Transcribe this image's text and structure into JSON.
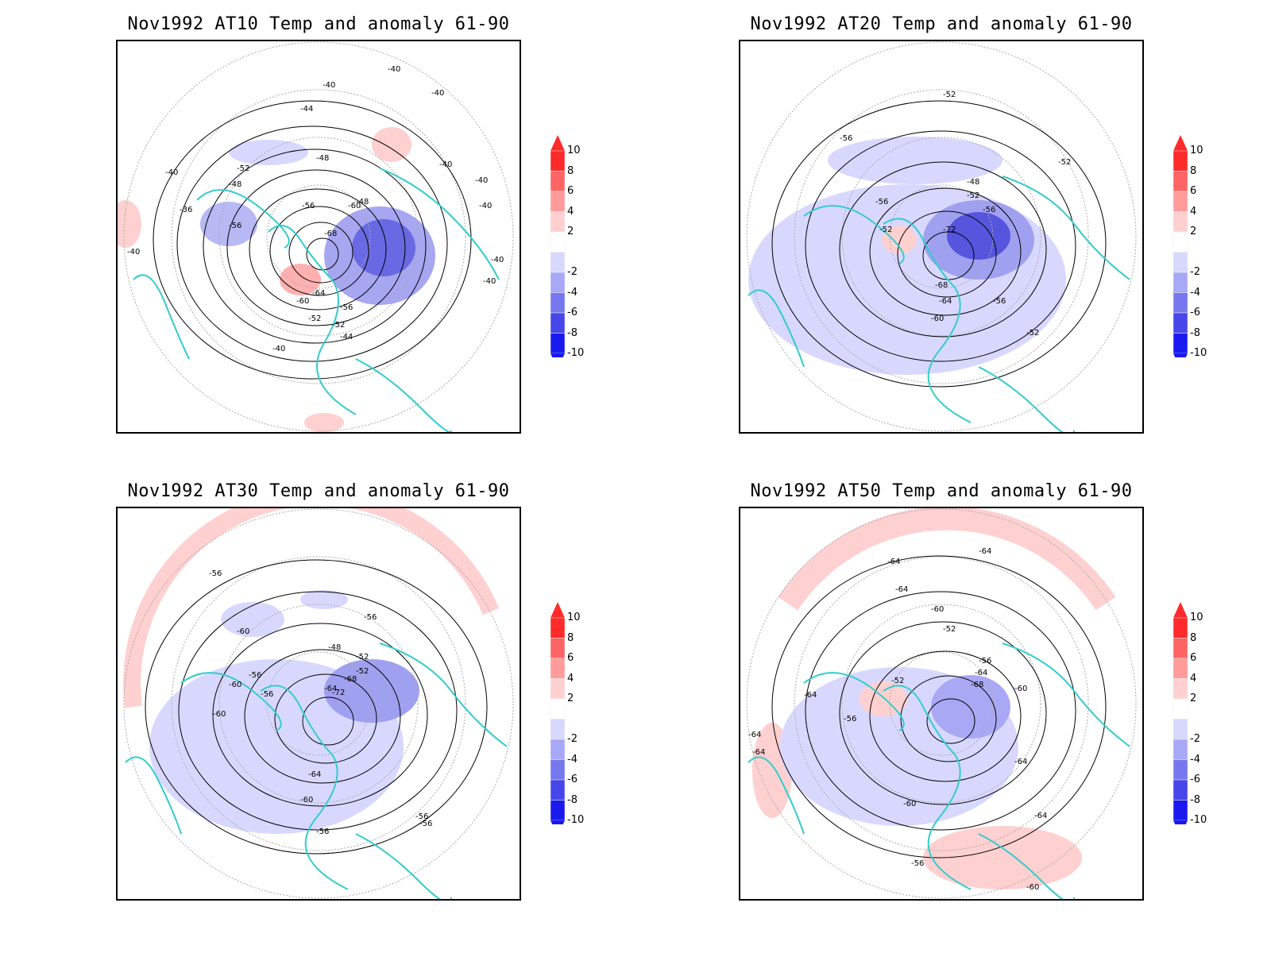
{
  "panels": [
    {
      "title": "Nov1992 AT10 Temp and anomaly 61-90",
      "contour_labels": [
        "-40",
        "-40",
        "-40",
        "-40",
        "-40",
        "-40",
        "-40",
        "-40",
        "-40",
        "-40",
        "-44",
        "-48",
        "-52",
        "-48",
        "-36",
        "-56",
        "-56",
        "-60",
        "-64",
        "-68",
        "-52",
        "-48",
        "-60",
        "-56",
        "-52",
        "-44",
        "-40"
      ]
    },
    {
      "title": "Nov1992 AT20 Temp and anomaly 61-90",
      "contour_labels": [
        "-52",
        "-56",
        "-52",
        "-48",
        "-52",
        "-56",
        "-52",
        "-56",
        "-72",
        "-68",
        "-64",
        "-60",
        "-56",
        "-52"
      ]
    },
    {
      "title": "Nov1992 AT30 Temp and anomaly 61-90",
      "contour_labels": [
        "-56",
        "-60",
        "-56",
        "-48",
        "-52",
        "-56",
        "-52",
        "-60",
        "-64",
        "-68",
        "-72",
        "-56",
        "-60",
        "-64",
        "-60",
        "-56",
        "-56",
        "-56"
      ]
    },
    {
      "title": "Nov1992 AT50 Temp and anomaly 61-90",
      "contour_labels": [
        "-64",
        "-64",
        "-64",
        "-60",
        "-52",
        "-56",
        "-52",
        "-56",
        "-64",
        "-68",
        "-60",
        "-64",
        "-56",
        "-60",
        "-60",
        "-64",
        "-64",
        "-64",
        "-64"
      ]
    }
  ],
  "colorbar": {
    "ticks": [
      "10",
      "8",
      "6",
      "4",
      "2",
      "-2",
      "-4",
      "-6",
      "-8",
      "-10"
    ],
    "colors": [
      "#ff2a2a",
      "#ff6464",
      "#ff9b9b",
      "#ffd0d0",
      "#ffffff",
      "#d8d8ff",
      "#a8a8f8",
      "#7777f0",
      "#4646ea",
      "#1a1af0"
    ]
  },
  "colors": {
    "coastline": "#33cccc",
    "contour": "#000000",
    "warm_anomaly": "#ffd0d0",
    "cold_anomaly": "#b8b8f4",
    "grid": "#aaaaaa"
  }
}
